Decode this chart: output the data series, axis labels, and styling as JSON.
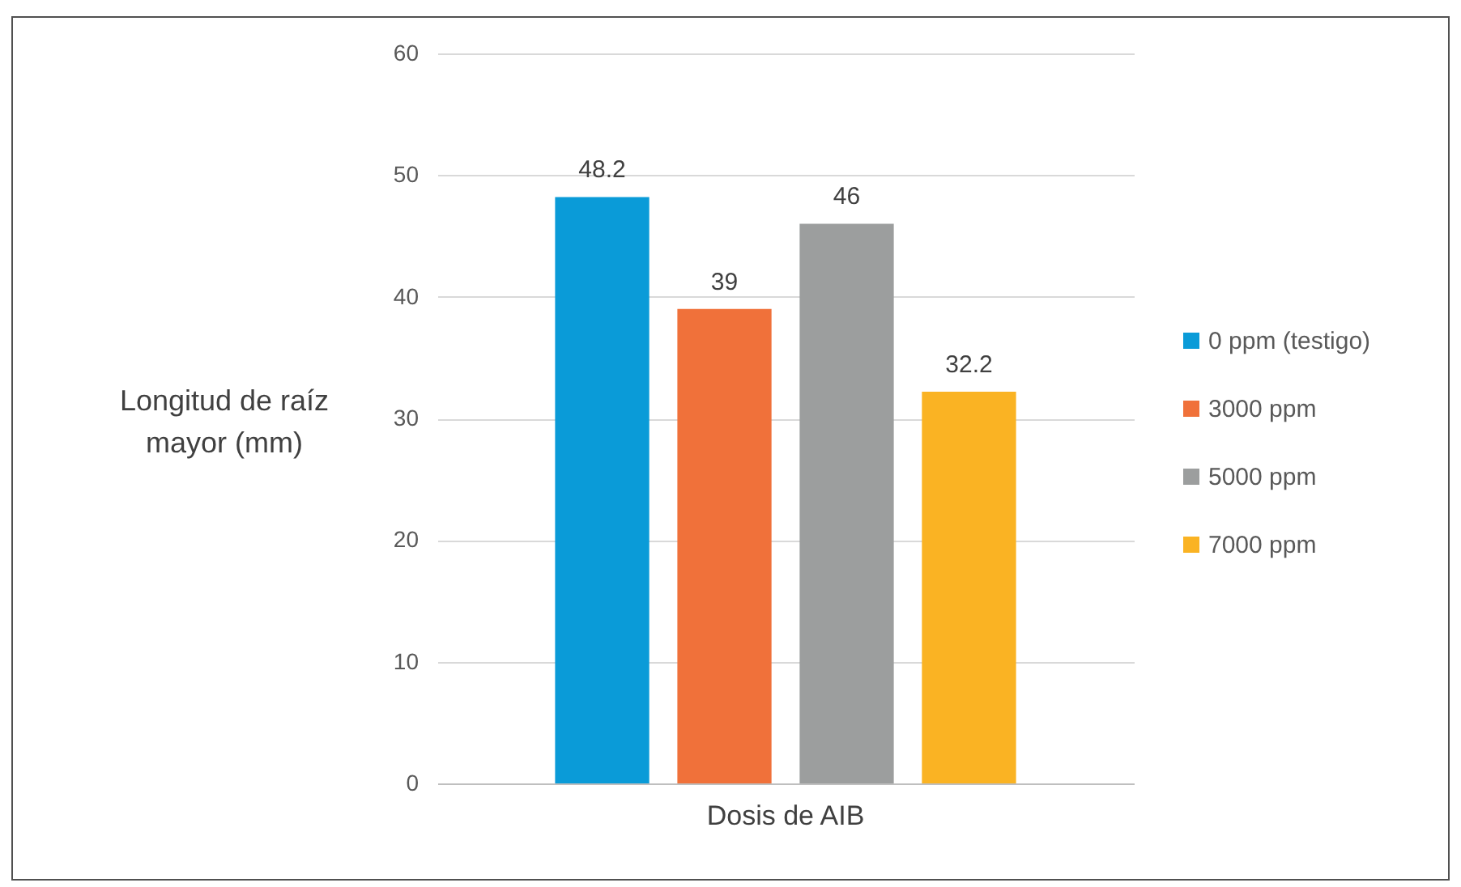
{
  "chart_data": {
    "type": "bar",
    "categories": [
      "Dosis de AIB"
    ],
    "ylabel": "Longitud de raíz mayor (mm)",
    "series": [
      {
        "name": "0 ppm (testigo)",
        "color": "#0a9bd8",
        "values": [
          48.2
        ]
      },
      {
        "name": "3000 ppm",
        "color": "#f0713a",
        "values": [
          39
        ]
      },
      {
        "name": "5000 ppm",
        "color": "#9c9e9e",
        "values": [
          46
        ]
      },
      {
        "name": "7000 ppm",
        "color": "#fab323",
        "values": [
          32.2
        ]
      }
    ],
    "ylim": [
      0,
      60
    ],
    "yticks": [
      0,
      10,
      20,
      30,
      40,
      50,
      60
    ],
    "grid": "y",
    "legend": "right",
    "data_labels": true
  }
}
